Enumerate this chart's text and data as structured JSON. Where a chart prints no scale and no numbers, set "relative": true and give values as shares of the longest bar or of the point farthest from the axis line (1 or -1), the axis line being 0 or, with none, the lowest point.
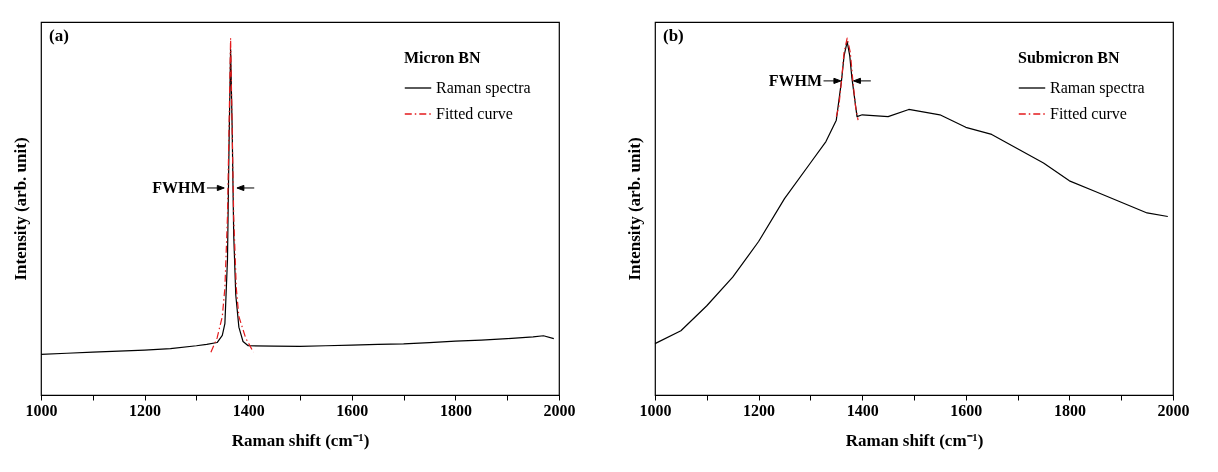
{
  "chart_data": [
    {
      "type": "line",
      "xlabel": "Raman shift (cm⁻¹)",
      "ylabel": "Intensity (arb. unit)",
      "legend_title": "Micron BN",
      "legend": "top right",
      "relative": true,
      "xlim": [
        1000,
        2000
      ],
      "xticks": [
        1000,
        {
          "value": 1100,
          "label": null
        },
        1200,
        {
          "value": 1300,
          "label": null
        },
        1400,
        {
          "value": 1500,
          "label": null
        },
        1600,
        {
          "value": 1700,
          "label": null
        },
        1800,
        {
          "value": 1900,
          "label": null
        },
        2000
      ],
      "annotations": [
        "(a)",
        {
          "text": "FWHM",
          "x": 1366,
          "y": 0.58
        }
      ],
      "series": [
        {
          "name": "Raman spectra",
          "color": "#000000",
          "line_style": "solid",
          "x": [
            1000,
            1050,
            1100,
            1150,
            1200,
            1250,
            1300,
            1320,
            1340,
            1350,
            1355,
            1360,
            1363,
            1366,
            1369,
            1372,
            1376,
            1382,
            1390,
            1400,
            1450,
            1500,
            1550,
            1600,
            1650,
            1700,
            1750,
            1800,
            1850,
            1900,
            1950,
            1970,
            1990
          ],
          "values": [
            0.114,
            0.117,
            0.12,
            0.123,
            0.126,
            0.13,
            0.138,
            0.142,
            0.147,
            0.167,
            0.2,
            0.38,
            0.7,
            0.97,
            0.75,
            0.45,
            0.28,
            0.19,
            0.15,
            0.138,
            0.137,
            0.136,
            0.138,
            0.14,
            0.142,
            0.143,
            0.147,
            0.151,
            0.154,
            0.158,
            0.163,
            0.166,
            0.158
          ]
        },
        {
          "name": "Fitted curve",
          "color": "#e41a1c",
          "line_style": "dashed",
          "x": [
            1328,
            1340,
            1350,
            1355,
            1360,
            1363,
            1366,
            1369,
            1372,
            1377,
            1382,
            1395,
            1410
          ],
          "values": [
            0.12,
            0.16,
            0.22,
            0.3,
            0.5,
            0.75,
            1,
            0.75,
            0.5,
            0.3,
            0.22,
            0.16,
            0.12
          ]
        }
      ]
    },
    {
      "type": "line",
      "xlabel": "Raman shift (cm⁻¹)",
      "ylabel": "Intensity (arb. unit)",
      "legend_title": "Submicron BN",
      "legend": "top right",
      "relative": true,
      "xlim": [
        1000,
        2000
      ],
      "xticks": [
        1000,
        {
          "value": 1100,
          "label": null
        },
        1200,
        {
          "value": 1300,
          "label": null
        },
        1400,
        {
          "value": 1500,
          "label": null
        },
        1600,
        {
          "value": 1700,
          "label": null
        },
        1800,
        {
          "value": 1900,
          "label": null
        },
        2000
      ],
      "annotations": [
        "(b)",
        {
          "text": "FWHM",
          "x": 1371,
          "y": 0.88
        }
      ],
      "series": [
        {
          "name": "Raman spectra",
          "color": "#000000",
          "line_style": "solid",
          "x": [
            1000,
            1050,
            1100,
            1150,
            1200,
            1250,
            1300,
            1330,
            1350,
            1360,
            1365,
            1371,
            1376,
            1380,
            1390,
            1400,
            1450,
            1490,
            1550,
            1600,
            1650,
            1700,
            1750,
            1800,
            1850,
            1900,
            1950,
            1990
          ],
          "values": [
            0.144,
            0.18,
            0.25,
            0.33,
            0.43,
            0.55,
            0.65,
            0.71,
            0.77,
            0.88,
            0.95,
            0.99,
            0.95,
            0.89,
            0.78,
            0.785,
            0.78,
            0.8,
            0.785,
            0.75,
            0.73,
            0.69,
            0.65,
            0.6,
            0.57,
            0.54,
            0.51,
            0.5
          ]
        },
        {
          "name": "Fitted curve",
          "color": "#e41a1c",
          "line_style": "dashed",
          "x": [
            1350,
            1355,
            1360,
            1365,
            1371,
            1377,
            1382,
            1387,
            1392
          ],
          "values": [
            0.78,
            0.81,
            0.88,
            0.96,
            1,
            0.96,
            0.88,
            0.81,
            0.77
          ]
        }
      ]
    }
  ]
}
